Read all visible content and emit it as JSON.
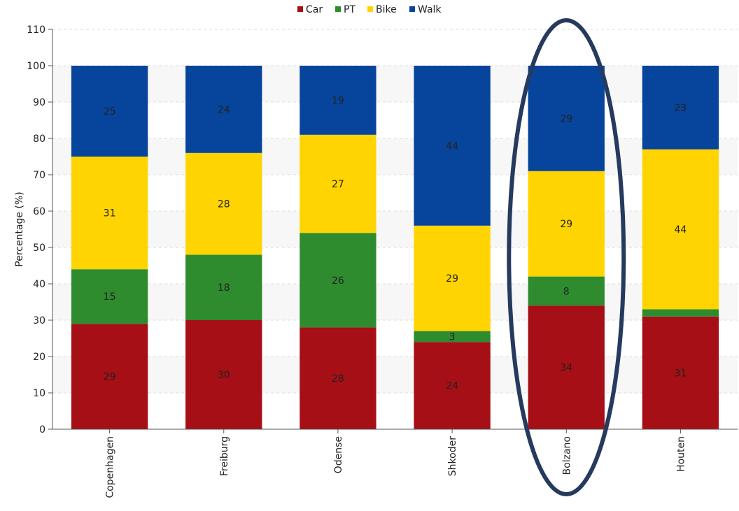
{
  "chart_data": {
    "type": "bar",
    "stacked": true,
    "categories": [
      "Copenhagen",
      "Freiburg",
      "Odense",
      "Shkoder",
      "Bolzano",
      "Houten"
    ],
    "series": [
      {
        "name": "Car",
        "color": "#a50f15",
        "values": [
          29,
          30,
          28,
          24,
          34,
          31
        ]
      },
      {
        "name": "PT",
        "color": "#2e8b2e",
        "values": [
          15,
          18,
          26,
          3,
          8,
          2
        ]
      },
      {
        "name": "Bike",
        "color": "#ffd400",
        "values": [
          31,
          28,
          27,
          29,
          29,
          44
        ]
      },
      {
        "name": "Walk",
        "color": "#07449b",
        "values": [
          25,
          24,
          19,
          44,
          29,
          23
        ]
      }
    ],
    "data_labels": {
      "Car": [
        "29",
        "30",
        "28",
        "24",
        "34",
        "31"
      ],
      "PT": [
        "15",
        "18",
        "26",
        "3",
        "8",
        ""
      ],
      "Bike": [
        "31",
        "28",
        "27",
        "29",
        "29",
        "44"
      ],
      "Walk": [
        "25",
        "24",
        "19",
        "44",
        "29",
        "23"
      ]
    },
    "xlabel": "",
    "ylabel": "Percentage (%)",
    "ylim": [
      0,
      110
    ],
    "yticks": [
      0,
      10,
      20,
      30,
      40,
      50,
      60,
      70,
      80,
      90,
      100,
      110
    ],
    "grid": true,
    "legend_position": "top-center",
    "highlight": {
      "category": "Bolzano",
      "shape": "ellipse",
      "color": "#253a5e"
    }
  }
}
